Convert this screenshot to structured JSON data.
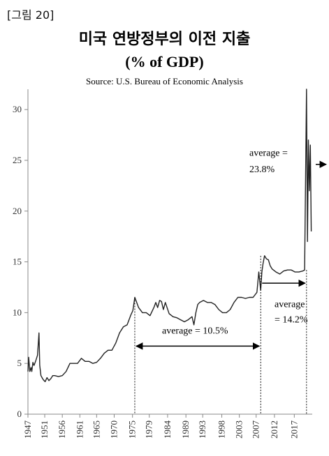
{
  "figure_label": "[그림 20]",
  "chart_data": {
    "type": "line",
    "title": "미국 연방정부의 이전 지출",
    "subtitle": "(% of GDP)",
    "source": "Source: U.S. Bureau of Economic Analysis",
    "xlabel": "",
    "ylabel": "",
    "xlim": [
      1947,
      2021.5
    ],
    "ylim": [
      0,
      32
    ],
    "y_ticks": [
      0,
      5,
      10,
      15,
      20,
      25,
      30
    ],
    "x_ticks": [
      "1947",
      "1951",
      "1956",
      "1961",
      "1965",
      "1970",
      "1975",
      "1979",
      "1984",
      "1989",
      "1993",
      "1998",
      "2003",
      "2007",
      "2012",
      "2017"
    ],
    "x_tick_values": [
      1947,
      1951.4,
      1956,
      1960.6,
      1965,
      1969.6,
      1974.4,
      1978.8,
      1983.6,
      1988.4,
      1992.8,
      1997.8,
      2002.4,
      2006.8,
      2011.6,
      2016.8
    ],
    "series": [
      {
        "x": [
          1947,
          1947.2,
          1947.5,
          1947.8,
          1948,
          1948.3,
          1948.6,
          1949,
          1949.5,
          1949.9,
          1950.1,
          1950.4,
          1950.7,
          1951,
          1951.5,
          1952,
          1952.5,
          1953,
          1953.5,
          1954,
          1955,
          1956,
          1957,
          1958,
          1959,
          1960,
          1961,
          1962,
          1963,
          1964,
          1965,
          1966,
          1967,
          1968,
          1969,
          1970,
          1971,
          1972,
          1973,
          1974,
          1974.5,
          1975,
          1975.5,
          1976,
          1977,
          1978,
          1979,
          1980,
          1980.5,
          1981,
          1981.5,
          1982,
          1982.5,
          1983,
          1984,
          1985,
          1986,
          1987,
          1988,
          1989,
          1990,
          1990.5,
          1991,
          1991.5,
          1992,
          1993,
          1994,
          1995,
          1996,
          1997,
          1998,
          1999,
          2000,
          2001,
          2002,
          2003,
          2004,
          2005,
          2006,
          2007,
          2007.5,
          2008,
          2008.3,
          2008.6,
          2009,
          2009.5,
          2010,
          2010.5,
          2011,
          2012,
          2013,
          2014,
          2015,
          2016,
          2017,
          2018,
          2019,
          2019.5,
          2020,
          2020.25,
          2020.5,
          2020.75,
          2021,
          2021.25
        ],
        "values": [
          4.2,
          5.6,
          4.2,
          4.6,
          4.2,
          5.1,
          4.8,
          5.2,
          5.8,
          8.0,
          4.8,
          3.8,
          3.6,
          3.4,
          3.2,
          3.6,
          3.3,
          3.5,
          3.8,
          3.8,
          3.7,
          3.8,
          4.2,
          5.0,
          5.0,
          5.0,
          5.5,
          5.2,
          5.2,
          5.0,
          5.1,
          5.5,
          6.0,
          6.3,
          6.3,
          7.0,
          8.0,
          8.6,
          8.8,
          9.8,
          10.2,
          11.5,
          11.0,
          10.5,
          10.0,
          10.0,
          9.7,
          10.5,
          11.0,
          10.5,
          11.2,
          11.1,
          10.3,
          11.0,
          9.9,
          9.6,
          9.5,
          9.3,
          9.1,
          9.3,
          9.6,
          8.8,
          10.0,
          10.8,
          11.0,
          11.2,
          11.0,
          11.0,
          10.8,
          10.3,
          10.0,
          10.0,
          10.3,
          11.0,
          11.5,
          11.5,
          11.4,
          11.5,
          11.5,
          12.0,
          14.0,
          12.2,
          14.0,
          14.8,
          15.6,
          15.3,
          15.2,
          14.6,
          14.3,
          14.0,
          13.8,
          14.1,
          14.2,
          14.2,
          14.0,
          14.0,
          14.1,
          14.2,
          32.0,
          17.0,
          27.0,
          22.0,
          26.5,
          18.0
        ]
      }
    ],
    "annotations": [
      {
        "text": "average = 10.5%",
        "from": 1975,
        "to": 2008
      },
      {
        "text": "average",
        "text2": "= 14.2%",
        "from": 2008,
        "to": 2020
      },
      {
        "text": "average =",
        "text2": "23.8%",
        "from": 2020,
        "to": 2021.5
      }
    ],
    "grid": false,
    "legend": "none"
  }
}
